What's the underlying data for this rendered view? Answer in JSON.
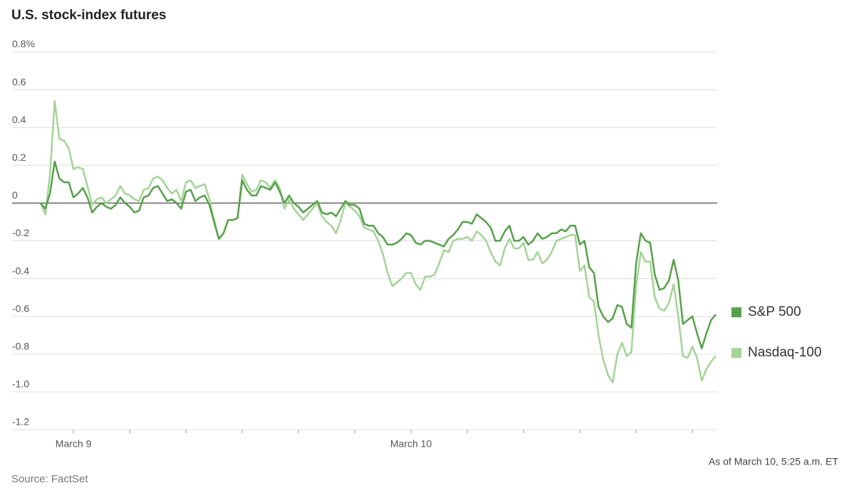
{
  "chart_data": {
    "type": "line",
    "title": "U.S. stock-index futures",
    "note": "As of March 10, 5:25 a.m. ET",
    "source": "Source: FactSet",
    "categories": [
      null,
      null,
      null,
      null,
      null,
      null,
      null,
      "March 9",
      null,
      null,
      null,
      null,
      null,
      null,
      null,
      null,
      null,
      null,
      null,
      null,
      null,
      null,
      null,
      null,
      null,
      null,
      null,
      null,
      null,
      null,
      null,
      null,
      null,
      null,
      null,
      null,
      null,
      null,
      null,
      null,
      null,
      null,
      null,
      null,
      null,
      null,
      null,
      null,
      null,
      null,
      null,
      null,
      null,
      null,
      null,
      null,
      null,
      null,
      null,
      null,
      null,
      null,
      null,
      null,
      null,
      null,
      null,
      null,
      null,
      null,
      null,
      null,
      null,
      null,
      null,
      null,
      null,
      null,
      null,
      "March 10",
      null,
      null,
      null,
      null,
      null,
      null,
      null,
      null,
      null,
      null,
      null,
      null,
      null,
      null,
      null,
      null,
      null,
      null,
      null,
      null,
      null,
      null,
      null,
      null,
      null,
      null,
      null,
      null,
      null,
      null,
      null,
      null,
      null,
      null,
      null,
      null,
      null,
      null,
      null,
      null,
      null,
      null,
      null,
      null,
      null,
      null,
      null,
      null,
      null,
      null,
      null,
      null,
      null,
      null,
      null,
      null,
      null,
      null,
      null,
      null,
      null,
      null,
      null,
      null,
      null
    ],
    "series": [
      {
        "name": "S&P 500",
        "color": "#56a04a",
        "values": [
          0,
          -0.03,
          0.05,
          0.22,
          0.13,
          0.11,
          0.11,
          0.03,
          0.05,
          0.08,
          0.03,
          -0.05,
          -0.02,
          0,
          -0.02,
          -0.03,
          -0.01,
          0.03,
          0,
          -0.02,
          -0.05,
          -0.04,
          0.03,
          0.04,
          0.08,
          0.09,
          0.05,
          0.01,
          0.02,
          0,
          -0.03,
          0.06,
          0.07,
          0.01,
          0.03,
          0.04,
          -0.01,
          -0.1,
          -0.19,
          -0.16,
          -0.09,
          -0.09,
          -0.08,
          0.12,
          0.07,
          0.04,
          0.04,
          0.09,
          0.08,
          0.07,
          0.11,
          0.06,
          0,
          0.04,
          0,
          -0.02,
          -0.05,
          -0.03,
          -0.01,
          0.01,
          -0.05,
          -0.06,
          -0.05,
          -0.07,
          -0.03,
          0.01,
          -0.01,
          -0.01,
          -0.03,
          -0.11,
          -0.12,
          -0.12,
          -0.16,
          -0.18,
          -0.22,
          -0.22,
          -0.21,
          -0.19,
          -0.16,
          -0.17,
          -0.21,
          -0.22,
          -0.2,
          -0.2,
          -0.21,
          -0.22,
          -0.23,
          -0.19,
          -0.17,
          -0.14,
          -0.1,
          -0.1,
          -0.11,
          -0.06,
          -0.08,
          -0.1,
          -0.13,
          -0.2,
          -0.2,
          -0.15,
          -0.12,
          -0.2,
          -0.2,
          -0.18,
          -0.22,
          -0.2,
          -0.16,
          -0.19,
          -0.18,
          -0.16,
          -0.16,
          -0.14,
          -0.15,
          -0.12,
          -0.12,
          -0.22,
          -0.2,
          -0.34,
          -0.37,
          -0.55,
          -0.6,
          -0.63,
          -0.61,
          -0.54,
          -0.55,
          -0.64,
          -0.66,
          -0.32,
          -0.16,
          -0.2,
          -0.21,
          -0.38,
          -0.46,
          -0.45,
          -0.41,
          -0.3,
          -0.41,
          -0.64,
          -0.62,
          -0.6,
          -0.69,
          -0.77,
          -0.69,
          -0.62,
          -0.59
        ]
      },
      {
        "name": "Nasdaq-100",
        "color": "#a3d496",
        "values": [
          0,
          -0.06,
          0.15,
          0.54,
          0.34,
          0.33,
          0.29,
          0.18,
          0.19,
          0.18,
          0.09,
          -0.01,
          0.02,
          0.03,
          0,
          0.02,
          0.04,
          0.09,
          0.05,
          0.04,
          0.02,
          0.01,
          0.07,
          0.08,
          0.13,
          0.14,
          0.12,
          0.08,
          0.05,
          0.07,
          0.01,
          0.11,
          0.12,
          0.08,
          0.09,
          0.1,
          0.02,
          -0.09,
          -0.19,
          -0.16,
          -0.09,
          -0.09,
          -0.08,
          0.15,
          0.1,
          0.06,
          0.07,
          0.12,
          0.11,
          0.08,
          0.12,
          0.08,
          -0.03,
          0.02,
          -0.03,
          -0.06,
          -0.09,
          -0.06,
          -0.03,
          0,
          -0.07,
          -0.1,
          -0.12,
          -0.16,
          -0.09,
          0,
          -0.02,
          -0.04,
          -0.07,
          -0.13,
          -0.14,
          -0.15,
          -0.2,
          -0.27,
          -0.37,
          -0.44,
          -0.42,
          -0.4,
          -0.37,
          -0.37,
          -0.43,
          -0.46,
          -0.39,
          -0.39,
          -0.38,
          -0.32,
          -0.25,
          -0.26,
          -0.2,
          -0.19,
          -0.19,
          -0.18,
          -0.2,
          -0.15,
          -0.17,
          -0.2,
          -0.26,
          -0.31,
          -0.33,
          -0.24,
          -0.19,
          -0.24,
          -0.24,
          -0.21,
          -0.3,
          -0.3,
          -0.26,
          -0.32,
          -0.3,
          -0.26,
          -0.2,
          -0.19,
          -0.18,
          -0.17,
          -0.17,
          -0.36,
          -0.33,
          -0.5,
          -0.52,
          -0.7,
          -0.83,
          -0.91,
          -0.95,
          -0.8,
          -0.74,
          -0.81,
          -0.79,
          -0.44,
          -0.26,
          -0.31,
          -0.31,
          -0.5,
          -0.56,
          -0.57,
          -0.53,
          -0.43,
          -0.6,
          -0.81,
          -0.82,
          -0.76,
          -0.82,
          -0.94,
          -0.88,
          -0.84,
          -0.81
        ]
      }
    ],
    "ylim": [
      -1.2,
      0.8
    ],
    "yticks": [
      {
        "value": 0.8,
        "label": "0.8%"
      },
      0.6,
      0.4,
      0.2,
      0,
      -0.2,
      -0.4,
      -0.6,
      -0.8,
      {
        "value": -1,
        "label": "-1.0"
      },
      -1.2
    ],
    "grid": true,
    "legend": "right"
  }
}
